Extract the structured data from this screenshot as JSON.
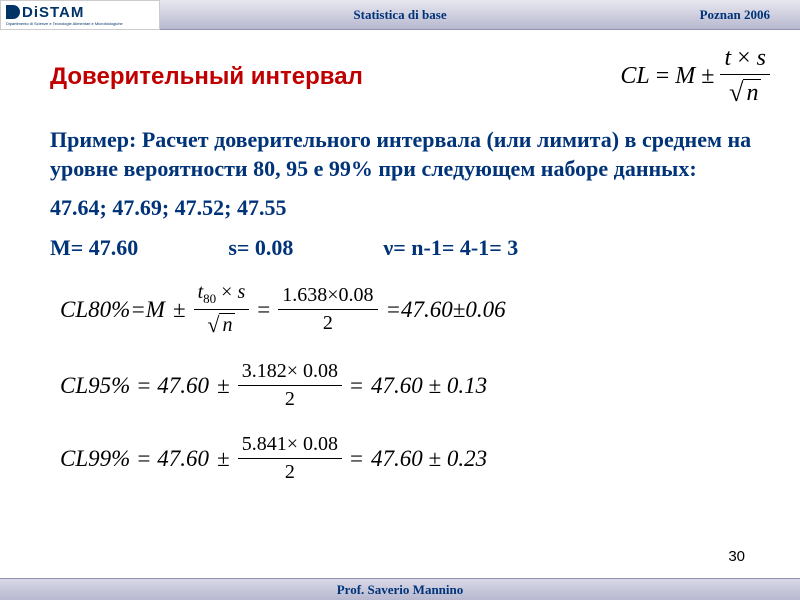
{
  "header": {
    "logo_main": "DiSTAM",
    "logo_sub": "Dipartimento di Scienze e Tecnologie Alimentari e Microbiologiche",
    "center": "Statistica di base",
    "right": "Poznan 2006"
  },
  "title": "Доверительный интервал",
  "main_formula": {
    "lhs": "CL",
    "eq": "=",
    "M": "M",
    "pm": "±",
    "num_t": "t",
    "times": "×",
    "num_s": "s",
    "denom_n": "n"
  },
  "body": "Пример: Расчет доверительного интервала (или лимита) в среднем на уровне вероятности 80, 95 e 99% при следующем наборе данных:",
  "data_values": "47.64; 47.69; 47.52; 47.55",
  "params": {
    "M": "M= 47.60",
    "s": "s= 0.08",
    "nu": "ν= n-1= 4-1= 3"
  },
  "eq80": {
    "label": "CL80%=M",
    "pm": "±",
    "t_label": "t",
    "t_sub": "80",
    "times": "×",
    "s": "s",
    "denom_n": "n",
    "eq": "=",
    "num2": "1.638×0.08",
    "denom2": "2",
    "result": "=47.60±0.06"
  },
  "eq95": {
    "label": "CL95% = 47.60",
    "pm": "±",
    "num": "3.182× 0.08",
    "denom": "2",
    "eq": "=",
    "result": " 47.60 ± 0.13"
  },
  "eq99": {
    "label": "CL99% = 47.60",
    "pm": "±",
    "num": "5.841× 0.08",
    "denom": "2",
    "eq": "=",
    "result": " 47.60 ± 0.23"
  },
  "page_number": "30",
  "footer": "Prof. Saverio Mannino",
  "colors": {
    "title": "#c00000",
    "body": "#003378",
    "header_text": "#003378"
  }
}
